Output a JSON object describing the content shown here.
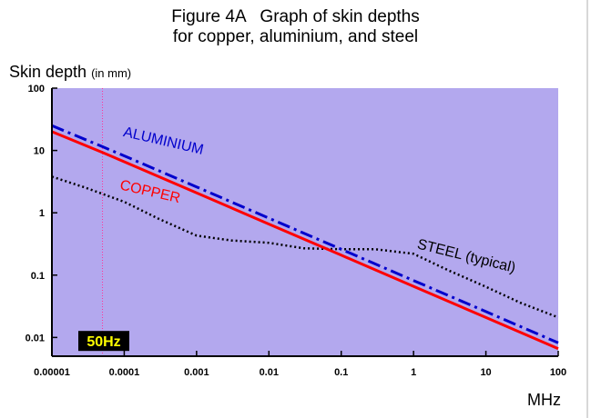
{
  "title": {
    "line1": "Figure 4A   Graph of skin depths",
    "line2": "for copper, aluminium, and steel"
  },
  "y_axis": {
    "label": "Skin depth",
    "unit_note": "(in mm)"
  },
  "x_axis": {
    "unit": "MHz"
  },
  "colors": {
    "plot_bg": "#b3a8ee",
    "copper": "#ff0000",
    "aluminium": "#0000cc",
    "steel": "#000000",
    "marker_line": "#ff3399",
    "badge_bg": "#000000",
    "badge_text": "#ffff00"
  },
  "chart_data": {
    "type": "line",
    "title": "Figure 4A Graph of skin depths for copper, aluminium, and steel",
    "xlabel": "MHz",
    "ylabel": "Skin depth (in mm)",
    "xscale": "log",
    "yscale": "log",
    "xlim": [
      1e-05,
      100
    ],
    "ylim": [
      0.005,
      100
    ],
    "x_ticks": [
      1e-05,
      0.0001,
      0.001,
      0.01,
      0.1,
      1,
      10,
      100
    ],
    "x_tick_labels": [
      "0.00001",
      "0.0001",
      "0.001",
      "0.01",
      "0.1",
      "1",
      "10",
      "100"
    ],
    "y_ticks": [
      0.01,
      0.1,
      1,
      10,
      100
    ],
    "y_tick_labels": [
      "0.01",
      "0.1",
      "1",
      "10",
      "100"
    ],
    "series": [
      {
        "name": "COPPER",
        "label": "COPPER",
        "style": "solid",
        "x": [
          1e-05,
          5e-05,
          0.0001,
          0.001,
          0.01,
          0.1,
          1,
          10,
          100
        ],
        "y": [
          20,
          9.3,
          6.6,
          2.09,
          0.66,
          0.209,
          0.066,
          0.0209,
          0.0066
        ]
      },
      {
        "name": "ALUMINIUM",
        "label": "ALUMINIUM",
        "style": "dash-dot",
        "x": [
          1e-05,
          5e-05,
          0.0001,
          0.001,
          0.01,
          0.1,
          1,
          10,
          100
        ],
        "y": [
          25,
          11.5,
          8.2,
          2.6,
          0.82,
          0.26,
          0.082,
          0.026,
          0.0082
        ]
      },
      {
        "name": "STEEL (typical)",
        "label": "STEEL (typical)",
        "style": "dotted",
        "x": [
          1e-05,
          3e-05,
          0.0001,
          0.0003,
          0.001,
          0.003,
          0.01,
          0.03,
          0.1,
          0.3,
          1,
          3,
          10,
          30,
          100
        ],
        "y": [
          3.8,
          2.5,
          1.5,
          0.8,
          0.43,
          0.36,
          0.33,
          0.27,
          0.26,
          0.26,
          0.22,
          0.12,
          0.065,
          0.036,
          0.021
        ]
      }
    ],
    "annotations": [
      {
        "type": "vline",
        "x": 5e-05,
        "label": "50Hz"
      }
    ]
  }
}
